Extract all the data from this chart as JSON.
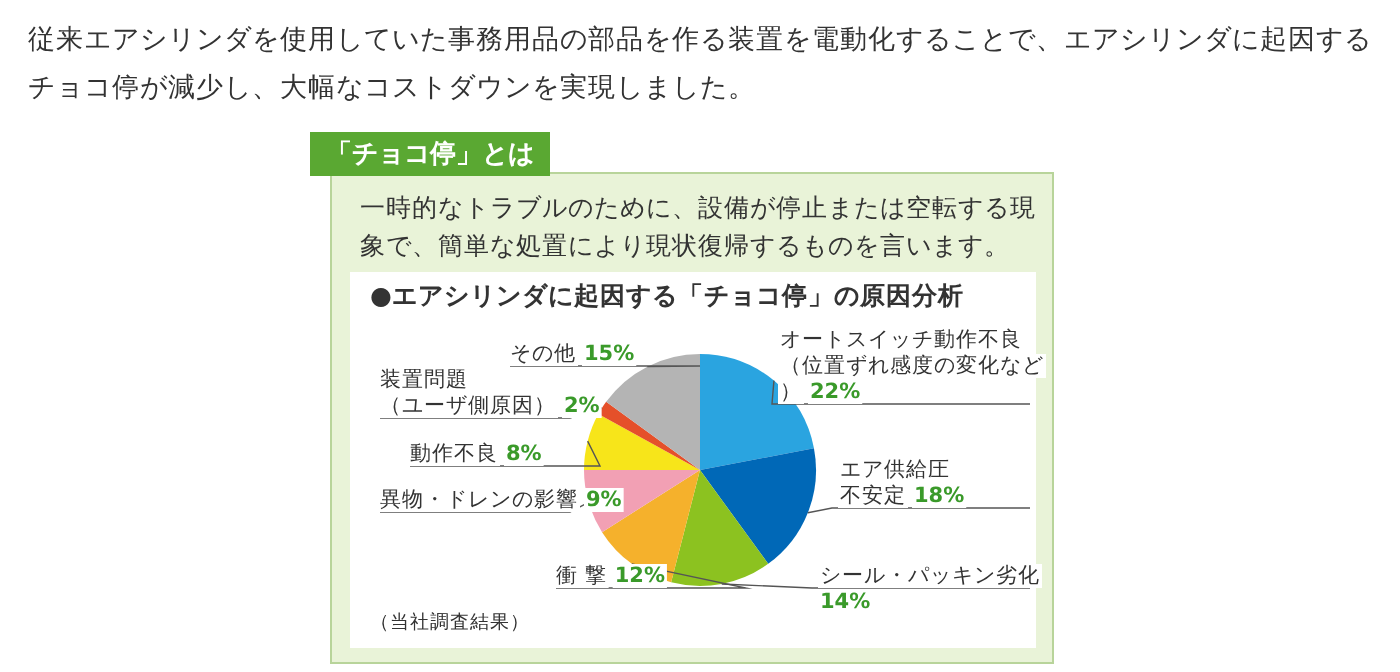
{
  "chart_data": {
    "type": "pie",
    "title": "●エアシリンダに起因する「チョコ停」の原因分析",
    "annotations": [
      "従来エアシリンダを使用していた事務用品の部品を作る装置を電動化することで、エアシリンダに起因するチョコ停が減少し、大幅なコストダウンを実現しました。",
      "「チョコ停」とは",
      "一時的なトラブルのために、設備が停止または空転する現象で、簡単な処置により現状復帰するものを言います。",
      "（当社調査結果）"
    ],
    "categories": [
      "オートスイッチ動作不良（位置ずれ感度の変化など）",
      "エア供給圧不安定",
      "シール・パッキン劣化",
      "衝 撃",
      "異物・ドレンの影響",
      "動作不良",
      "装置問題（ユーザ側原因）",
      "その他"
    ],
    "values": [
      22,
      18,
      14,
      12,
      9,
      8,
      2,
      15
    ],
    "value_labels": [
      "22%",
      "18%",
      "14%",
      "12%",
      "9%",
      "8%",
      "2%",
      "15%"
    ],
    "colors": [
      "#2aa4e0",
      "#0068b7",
      "#8cc220",
      "#f5b12c",
      "#f2a0b4",
      "#f7e51a",
      "#e5502a",
      "#b4b4b4"
    ],
    "legend": false
  }
}
